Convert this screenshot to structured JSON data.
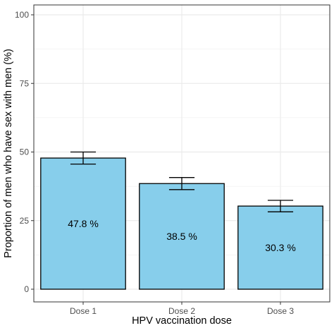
{
  "chart_data": {
    "type": "bar",
    "title": "",
    "xlabel": "HPV vaccination dose",
    "ylabel": "Proportion of men who have sex with men (%)",
    "categories": [
      "Dose 1",
      "Dose 2",
      "Dose 3"
    ],
    "values": [
      47.8,
      38.5,
      30.3
    ],
    "error_low": [
      45.6,
      36.3,
      28.2
    ],
    "error_high": [
      50.0,
      40.7,
      32.4
    ],
    "data_labels": [
      "47.8 %",
      "38.5 %",
      "30.3 %"
    ],
    "ylim": [
      0,
      100
    ],
    "yticks": [
      0,
      25,
      50,
      75,
      100
    ],
    "grid": true,
    "legend": "none",
    "bar_color": "#87ceeb",
    "bar_outline": "#000000",
    "grid_color": "#ebebeb"
  }
}
